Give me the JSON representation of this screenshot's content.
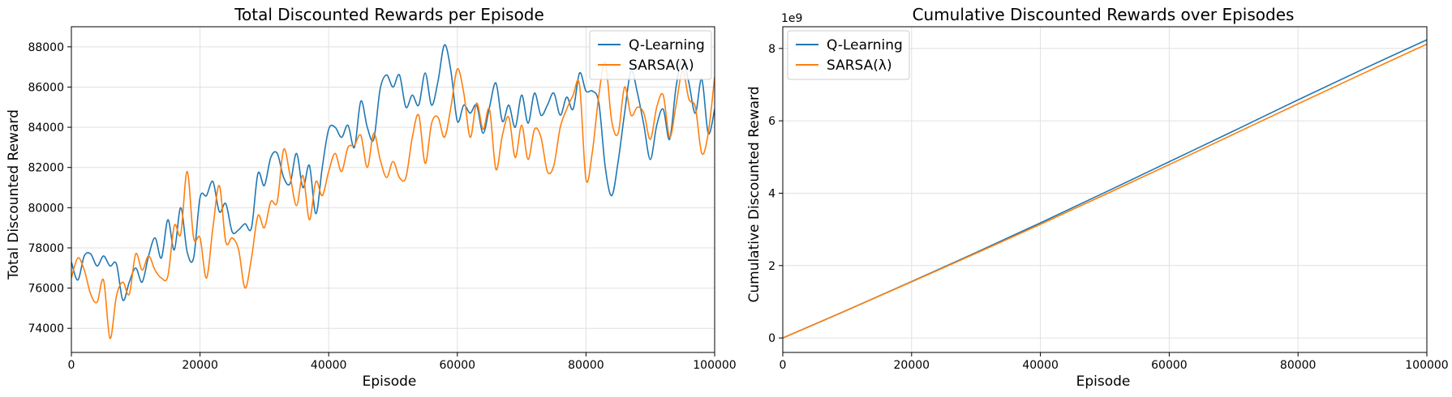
{
  "colors": {
    "q_learning": "#1f77b4",
    "sarsa": "#ff7f0e",
    "grid": "#e0e0e0"
  },
  "chart_data": [
    {
      "type": "line",
      "title": "Total Discounted Rewards per Episode",
      "xlabel": "Episode",
      "ylabel": "Total Discounted Reward",
      "xlim": [
        0,
        100000
      ],
      "ylim": [
        72800,
        89000
      ],
      "xticks": [
        0,
        20000,
        40000,
        60000,
        80000,
        100000
      ],
      "yticks": [
        74000,
        76000,
        78000,
        80000,
        82000,
        84000,
        86000,
        88000
      ],
      "grid": true,
      "legend_position": "top-right",
      "series": [
        {
          "name": "Q-Learning",
          "color": "#1f77b4",
          "x": [
            0,
            1000,
            2000,
            3000,
            4000,
            5000,
            6000,
            7000,
            8000,
            9000,
            10000,
            11000,
            12000,
            13000,
            14000,
            15000,
            16000,
            17000,
            18000,
            19000,
            20000,
            21000,
            22000,
            23000,
            24000,
            25000,
            26000,
            27000,
            28000,
            29000,
            30000,
            31000,
            32000,
            33000,
            34000,
            35000,
            36000,
            37000,
            38000,
            39000,
            40000,
            41000,
            42000,
            43000,
            44000,
            45000,
            46000,
            47000,
            48000,
            49000,
            50000,
            51000,
            52000,
            53000,
            54000,
            55000,
            56000,
            57000,
            58000,
            59000,
            60000,
            61000,
            62000,
            63000,
            64000,
            65000,
            66000,
            67000,
            68000,
            69000,
            70000,
            71000,
            72000,
            73000,
            74000,
            75000,
            76000,
            77000,
            78000,
            79000,
            80000,
            81000,
            82000,
            83000,
            84000,
            85000,
            86000,
            87000,
            88000,
            89000,
            90000,
            91000,
            92000,
            93000,
            94000,
            95000,
            96000,
            97000,
            98000,
            99000,
            100000
          ],
          "y": [
            77300,
            76400,
            77600,
            77700,
            77100,
            77600,
            77100,
            77200,
            75400,
            76300,
            77000,
            76300,
            77600,
            78500,
            77500,
            79400,
            77900,
            80000,
            77800,
            77500,
            80500,
            80600,
            81300,
            79800,
            80200,
            78800,
            78900,
            79200,
            79000,
            81700,
            81100,
            82500,
            82700,
            81500,
            81200,
            82700,
            81000,
            82100,
            79700,
            82000,
            83900,
            84000,
            83500,
            84100,
            83000,
            85300,
            84000,
            83400,
            85900,
            86600,
            86000,
            86600,
            85000,
            85600,
            85100,
            86700,
            85100,
            86300,
            88100,
            86800,
            84300,
            85100,
            84700,
            85100,
            83700,
            85000,
            86200,
            84300,
            85100,
            84000,
            85600,
            84200,
            85700,
            84600,
            85100,
            85700,
            84600,
            85500,
            84900,
            86700,
            85800,
            85800,
            85200,
            82000,
            80600,
            82300,
            84700,
            86800,
            85700,
            84100,
            82400,
            84100,
            84900,
            83400,
            86000,
            87400,
            86200,
            84700,
            86400,
            83700,
            84900
          ]
        },
        {
          "name": "SARSA(λ)",
          "color": "#ff7f0e",
          "x": [
            0,
            1000,
            2000,
            3000,
            4000,
            5000,
            6000,
            7000,
            8000,
            9000,
            10000,
            11000,
            12000,
            13000,
            14000,
            15000,
            16000,
            17000,
            18000,
            19000,
            20000,
            21000,
            22000,
            23000,
            24000,
            25000,
            26000,
            27000,
            28000,
            29000,
            30000,
            31000,
            32000,
            33000,
            34000,
            35000,
            36000,
            37000,
            38000,
            39000,
            40000,
            41000,
            42000,
            43000,
            44000,
            45000,
            46000,
            47000,
            48000,
            49000,
            50000,
            51000,
            52000,
            53000,
            54000,
            55000,
            56000,
            57000,
            58000,
            59000,
            60000,
            61000,
            62000,
            63000,
            64000,
            65000,
            66000,
            67000,
            68000,
            69000,
            70000,
            71000,
            72000,
            73000,
            74000,
            75000,
            76000,
            77000,
            78000,
            79000,
            80000,
            81000,
            82000,
            83000,
            84000,
            85000,
            86000,
            87000,
            88000,
            89000,
            90000,
            91000,
            92000,
            93000,
            94000,
            95000,
            96000,
            97000,
            98000,
            99000,
            100000
          ],
          "y": [
            76500,
            77500,
            76900,
            75700,
            75300,
            76400,
            73500,
            75600,
            76300,
            75700,
            77700,
            76900,
            77600,
            76900,
            76500,
            76600,
            79100,
            78700,
            81800,
            78500,
            78500,
            76500,
            79000,
            81100,
            78300,
            78500,
            77900,
            76000,
            77500,
            79600,
            79000,
            80300,
            80300,
            82900,
            81600,
            80100,
            81600,
            79400,
            81300,
            80600,
            81800,
            82700,
            81800,
            83000,
            83100,
            83600,
            82000,
            83700,
            82400,
            81500,
            82300,
            81500,
            81500,
            83500,
            84600,
            82200,
            84200,
            84500,
            83500,
            85000,
            86900,
            85700,
            83500,
            85200,
            83900,
            84900,
            81900,
            83600,
            84500,
            82500,
            84100,
            82400,
            83900,
            83500,
            81800,
            82100,
            84000,
            84900,
            85600,
            86100,
            81400,
            82800,
            85600,
            87200,
            84300,
            83700,
            86000,
            84600,
            85000,
            84700,
            83400,
            85000,
            85600,
            83500,
            85100,
            86800,
            85400,
            85000,
            82700,
            83700,
            86500
          ]
        }
      ]
    },
    {
      "type": "line",
      "title": "Cumulative Discounted Rewards over Episodes",
      "xlabel": "Episode",
      "ylabel": "Cumulative Discounted Reward",
      "y_offset_label": "1e9",
      "xlim": [
        0,
        100000
      ],
      "ylim": [
        -0.4,
        8.6
      ],
      "xticks": [
        0,
        20000,
        40000,
        60000,
        80000,
        100000
      ],
      "yticks": [
        0,
        2,
        4,
        6,
        8
      ],
      "grid": true,
      "legend_position": "top-left",
      "series": [
        {
          "name": "Q-Learning",
          "color": "#1f77b4",
          "x": [
            0,
            10000,
            20000,
            30000,
            40000,
            50000,
            60000,
            70000,
            80000,
            90000,
            100000
          ],
          "y": [
            0,
            0.77,
            1.56,
            2.36,
            3.18,
            4.02,
            4.87,
            5.72,
            6.58,
            7.42,
            8.24
          ]
        },
        {
          "name": "SARSA(λ)",
          "color": "#ff7f0e",
          "x": [
            0,
            10000,
            20000,
            30000,
            40000,
            50000,
            60000,
            70000,
            80000,
            90000,
            100000
          ],
          "y": [
            0,
            0.77,
            1.55,
            2.34,
            3.14,
            3.96,
            4.79,
            5.63,
            6.47,
            7.3,
            8.12
          ]
        }
      ]
    }
  ]
}
